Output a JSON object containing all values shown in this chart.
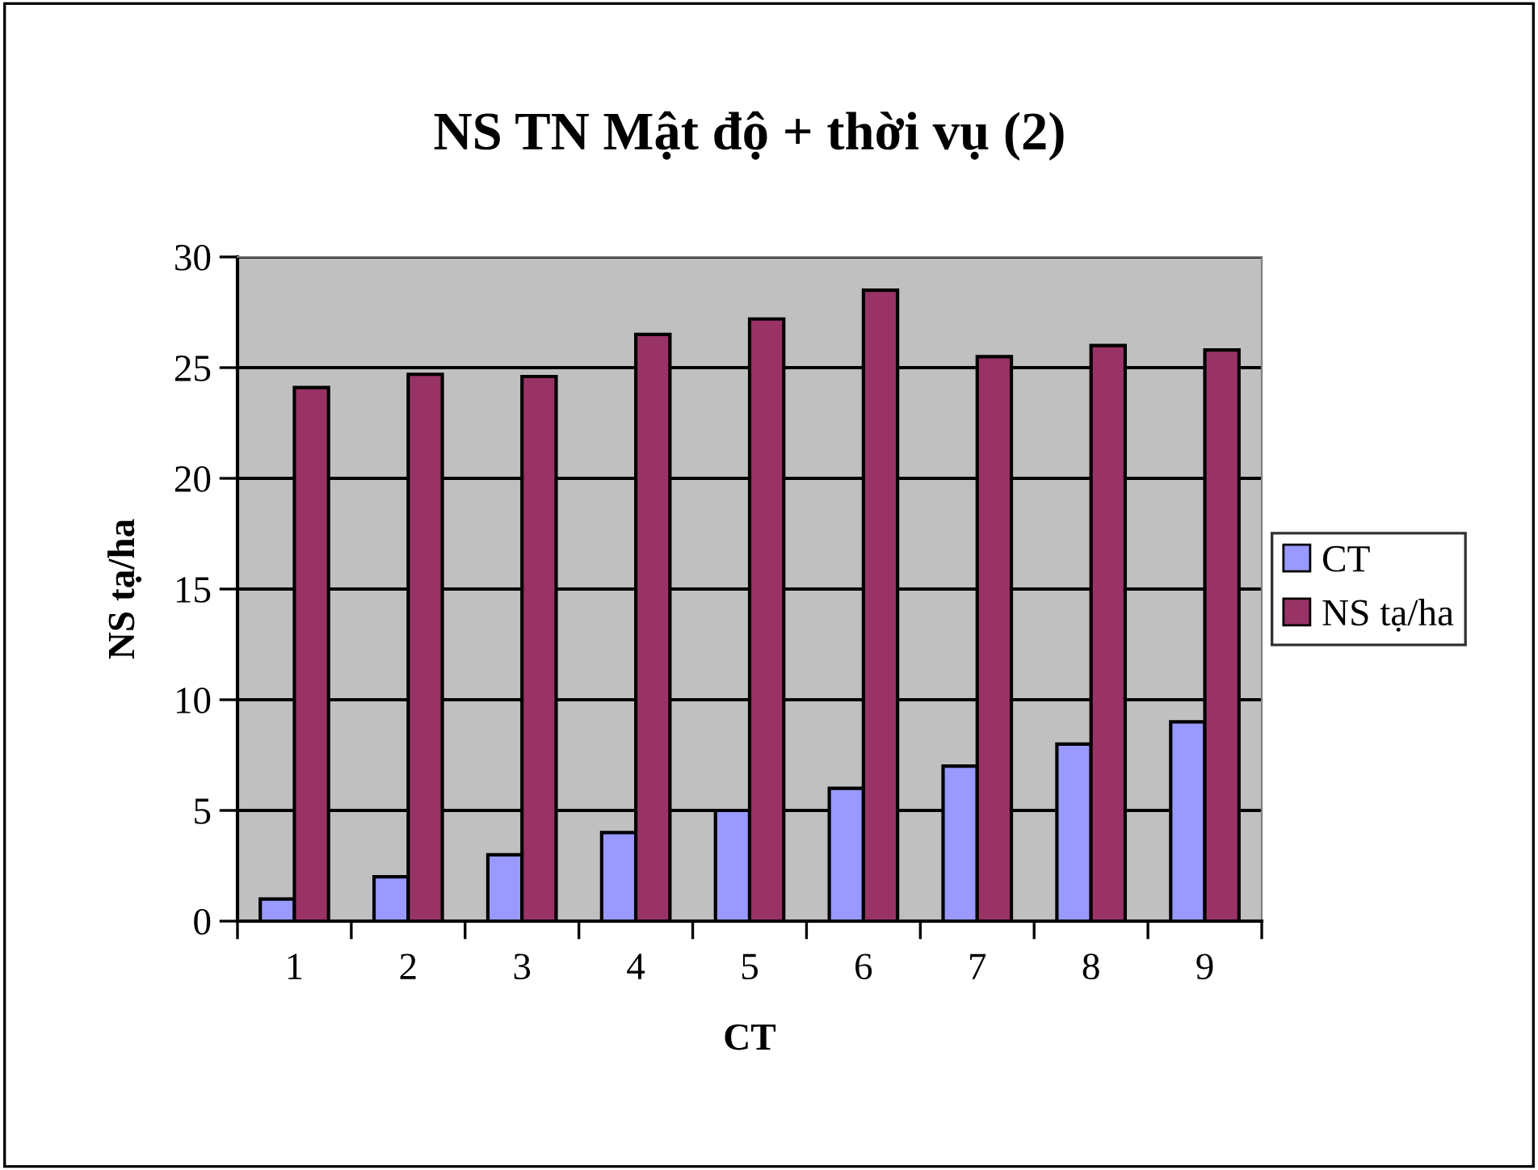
{
  "chart_data": {
    "type": "bar",
    "title": "NS TN Mật độ + thời vụ (2)",
    "xlabel": "CT",
    "ylabel": "NS tạ/ha",
    "categories": [
      "1",
      "2",
      "3",
      "4",
      "5",
      "6",
      "7",
      "8",
      "9"
    ],
    "series": [
      {
        "name": "CT",
        "color": "#9999ff",
        "values": [
          1,
          2,
          3,
          4,
          5,
          6,
          7,
          8,
          9
        ]
      },
      {
        "name": "NS tạ/ha",
        "color": "#993366",
        "values": [
          24.1,
          24.7,
          24.6,
          26.5,
          27.2,
          28.5,
          25.5,
          26.0,
          25.8
        ]
      }
    ],
    "ylim": [
      0,
      30
    ],
    "yticks": [
      0,
      5,
      10,
      15,
      20,
      25,
      30
    ],
    "grid": "y",
    "legend": "right"
  }
}
